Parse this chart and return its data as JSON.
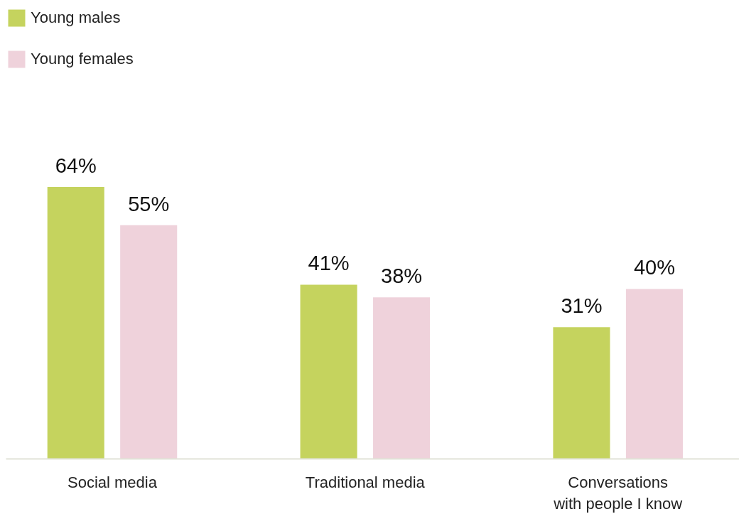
{
  "chart_data": {
    "type": "bar",
    "categories": [
      "Social media",
      "Traditional media",
      "Conversations\nwith people I know"
    ],
    "series": [
      {
        "name": "Young males",
        "color": "#c5d35e",
        "values": [
          64,
          41,
          31
        ],
        "value_labels": [
          "64%",
          "41%",
          "31%"
        ]
      },
      {
        "name": "Young females",
        "color": "#efd2db",
        "values": [
          55,
          38,
          40
        ],
        "value_labels": [
          "55%",
          "38%",
          "40%"
        ]
      }
    ],
    "legend": "top left"
  }
}
